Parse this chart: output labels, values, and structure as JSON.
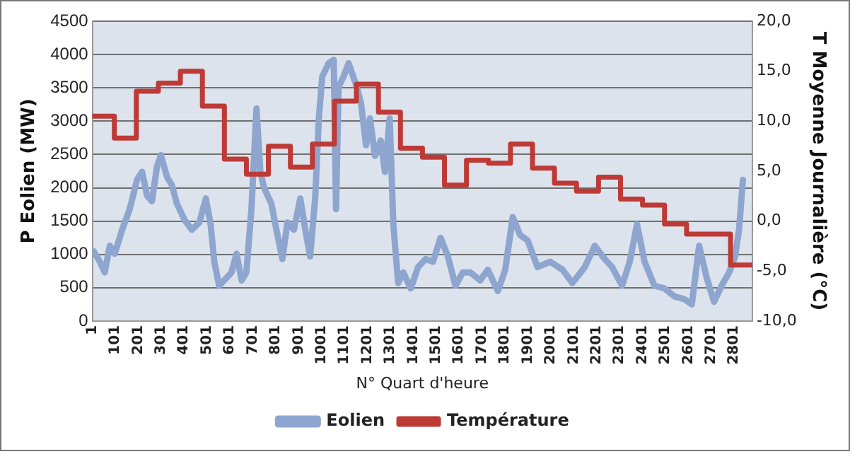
{
  "chart_data": {
    "type": "line",
    "xlabel": "N° Quart d'heure",
    "ylabel": "P Eolien (MW)",
    "y2label": "T Moyenne Journalière (°C)",
    "xlim": [
      1,
      2880
    ],
    "xticks": [
      1,
      101,
      201,
      301,
      401,
      501,
      601,
      701,
      801,
      901,
      1001,
      1101,
      1201,
      1301,
      1401,
      1501,
      1601,
      1701,
      1801,
      1901,
      2001,
      2101,
      2201,
      2301,
      2401,
      2501,
      2601,
      2701,
      2801
    ],
    "ylim": [
      0,
      4500
    ],
    "yticks": [
      0,
      500,
      1000,
      1500,
      2000,
      2500,
      3000,
      3500,
      4000,
      4500
    ],
    "y2lim": [
      -10,
      20
    ],
    "y2ticks": [
      {
        "value": -10,
        "label": "-10,0"
      },
      {
        "value": -5,
        "label": "-5,0"
      },
      {
        "value": 0,
        "label": "0,0"
      },
      {
        "value": 5,
        "label": "5,0"
      },
      {
        "value": 10,
        "label": "10,0"
      },
      {
        "value": 15,
        "label": "15,0"
      },
      {
        "value": 20,
        "label": "20,0"
      }
    ],
    "grid": "y",
    "legend": "bottom",
    "tick_labels": true,
    "series": [
      {
        "name": "Eolien",
        "type": "line",
        "color": "#8ea6cf",
        "x": [
          6,
          34,
          55,
          77,
          99,
          131,
          164,
          196,
          218,
          240,
          261,
          283,
          300,
          327,
          348,
          370,
          403,
          435,
          468,
          496,
          517,
          533,
          554,
          587,
          608,
          630,
          652,
          673,
          695,
          717,
          734,
          750,
          782,
          804,
          830,
          852,
          880,
          908,
          930,
          951,
          973,
          989,
          1004,
          1032,
          1054,
          1064,
          1075,
          1097,
          1119,
          1151,
          1173,
          1195,
          1212,
          1234,
          1259,
          1277,
          1298,
          1314,
          1335,
          1357,
          1390,
          1422,
          1455,
          1487,
          1520,
          1552,
          1585,
          1617,
          1650,
          1693,
          1726,
          1770,
          1802,
          1835,
          1867,
          1900,
          1943,
          1998,
          2052,
          2095,
          2149,
          2193,
          2236,
          2268,
          2312,
          2345,
          2377,
          2410,
          2453,
          2496,
          2540,
          2583,
          2616,
          2648,
          2681,
          2713,
          2746,
          2779,
          2805,
          2822,
          2839
        ],
        "values": [
          1050,
          890,
          730,
          1130,
          1010,
          1370,
          1680,
          2120,
          2240,
          1880,
          1800,
          2320,
          2490,
          2160,
          2040,
          1760,
          1520,
          1370,
          1480,
          1840,
          1450,
          890,
          530,
          650,
          730,
          1010,
          610,
          730,
          1680,
          3190,
          2240,
          2000,
          1760,
          1370,
          930,
          1480,
          1370,
          1840,
          1370,
          970,
          1840,
          3040,
          3670,
          3870,
          3920,
          1680,
          3510,
          3670,
          3870,
          3550,
          3270,
          2640,
          3040,
          2480,
          2710,
          2240,
          3040,
          1450,
          570,
          730,
          490,
          810,
          930,
          890,
          1250,
          970,
          530,
          730,
          730,
          610,
          770,
          450,
          770,
          1560,
          1290,
          1210,
          810,
          890,
          770,
          570,
          810,
          1130,
          930,
          810,
          530,
          890,
          1450,
          890,
          530,
          490,
          370,
          330,
          250,
          1130,
          650,
          290,
          530,
          730,
          970,
          1370,
          2120
        ]
      },
      {
        "name": "Température",
        "type": "step",
        "axis": "y2",
        "color": "#be3a36",
        "x": [
          1,
          97,
          193,
          289,
          385,
          481,
          577,
          673,
          769,
          865,
          961,
          1057,
          1153,
          1249,
          1345,
          1441,
          1537,
          1633,
          1729,
          1825,
          1921,
          2017,
          2113,
          2209,
          2305,
          2401,
          2497,
          2593,
          2689,
          2785,
          2880
        ],
        "values": [
          10.5,
          8.3,
          13.0,
          13.8,
          15.0,
          11.5,
          6.2,
          4.7,
          7.5,
          5.4,
          7.7,
          12.0,
          13.7,
          10.9,
          7.3,
          6.4,
          3.6,
          6.1,
          5.8,
          7.7,
          5.3,
          3.8,
          3.0,
          4.4,
          2.2,
          1.6,
          -0.3,
          -1.3,
          -1.3,
          -4.4,
          -4.4
        ]
      }
    ]
  }
}
